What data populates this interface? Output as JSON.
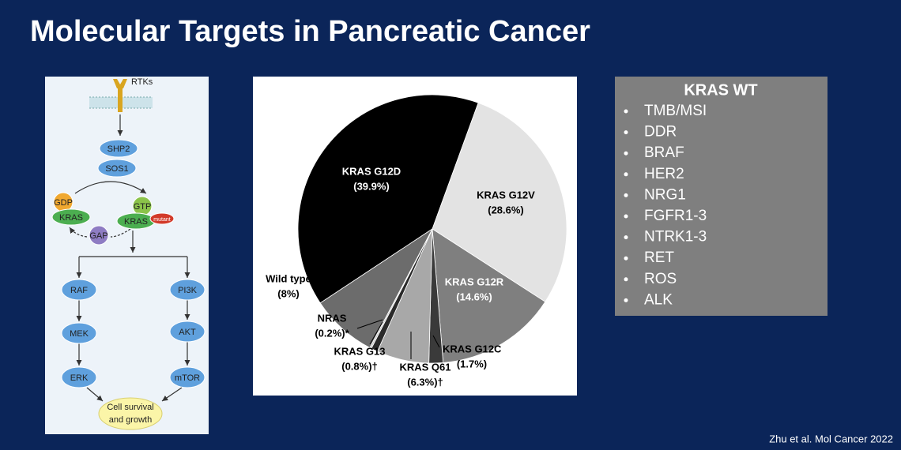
{
  "slide": {
    "title": "Molecular Targets in Pancreatic Cancer",
    "citation": "Zhu et al. Mol Cancer 2022"
  },
  "diagram": {
    "receptor": "RTKs",
    "nodes": [
      "SHP2",
      "SOS1",
      "GDP",
      "KRAS",
      "GTP",
      "KRAS",
      "mutant",
      "GAP",
      "RAF",
      "PI3K",
      "MEK",
      "AKT",
      "ERK",
      "mTOR"
    ],
    "outcome": [
      "Cell survival",
      "and growth"
    ]
  },
  "chart_data": {
    "type": "pie",
    "categories": [
      "KRAS G12D",
      "KRAS G12V",
      "KRAS G12R",
      "KRAS G12C",
      "KRAS Q61",
      "KRAS G13",
      "NRAS",
      "Wild type"
    ],
    "values": [
      39.9,
      28.6,
      14.6,
      1.7,
      6.3,
      0.8,
      0.2,
      8
    ],
    "value_labels": [
      "(39.9%)",
      "(28.6%)",
      "(14.6%)",
      "(1.7%)",
      "(6.3%)†",
      "(0.8%)†",
      "(0.2%)*",
      "(8%)"
    ],
    "colors": [
      "#000000",
      "#e3e3e3",
      "#7f7f7f",
      "#3a3a3a",
      "#a8a8a8",
      "#2a2a2a",
      "#c8c8c8",
      "#6c6c6c"
    ]
  },
  "list": {
    "title": "KRAS WT",
    "items": [
      "TMB/MSI",
      "DDR",
      "BRAF",
      "HER2",
      "NRG1",
      "FGFR1-3",
      "NTRK1-3",
      "RET",
      "ROS",
      "ALK"
    ]
  }
}
